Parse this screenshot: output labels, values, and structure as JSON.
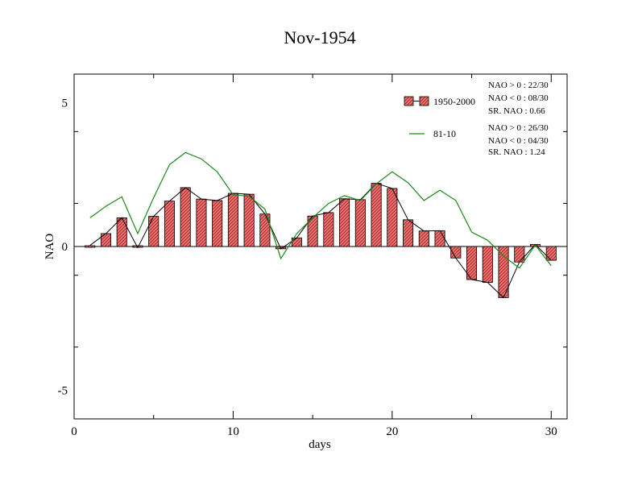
{
  "chart_data": {
    "type": "bar",
    "title": "Nov-1954",
    "xlabel": "days",
    "ylabel": "NAO",
    "xlim": [
      0,
      31
    ],
    "ylim": [
      -6,
      6
    ],
    "x_ticks": [
      0,
      10,
      20,
      30
    ],
    "y_ticks": [
      -5,
      0,
      5
    ],
    "x": [
      1,
      2,
      3,
      4,
      5,
      6,
      7,
      8,
      9,
      10,
      11,
      12,
      13,
      14,
      15,
      16,
      17,
      18,
      19,
      20,
      21,
      22,
      23,
      24,
      25,
      26,
      27,
      28,
      29,
      30
    ],
    "series": [
      {
        "name": "1950-2000",
        "kind": "bar",
        "color": "#f07070",
        "values": [
          0.04,
          0.45,
          1.0,
          -0.04,
          1.05,
          1.58,
          2.05,
          1.65,
          1.6,
          1.85,
          1.82,
          1.13,
          -0.08,
          0.3,
          1.06,
          1.18,
          1.66,
          1.63,
          2.2,
          2.02,
          0.93,
          0.54,
          0.55,
          -0.4,
          -1.15,
          -1.25,
          -1.78,
          -0.54,
          0.07,
          -0.48
        ]
      },
      {
        "name": "81-10",
        "kind": "line",
        "color": "#1a8a1a",
        "values": [
          1.0,
          1.4,
          1.73,
          0.45,
          1.7,
          2.85,
          3.27,
          3.05,
          2.6,
          1.8,
          1.75,
          1.3,
          -0.42,
          0.45,
          1.0,
          1.5,
          1.77,
          1.6,
          2.18,
          2.6,
          2.22,
          1.6,
          1.96,
          1.6,
          0.5,
          0.22,
          -0.33,
          -0.75,
          0.05,
          -0.67
        ]
      }
    ],
    "legend_position": "top-right",
    "legend": [
      {
        "label": "1950-2000",
        "stats": [
          "NAO > 0 : 22/30",
          "NAO < 0 : 08/30",
          "SR. NAO :  0.66"
        ]
      },
      {
        "label": "81-10",
        "stats": [
          "NAO > 0 : 26/30",
          "NAO < 0 : 04/30",
          "SR. NAO :  1.24"
        ]
      }
    ]
  }
}
